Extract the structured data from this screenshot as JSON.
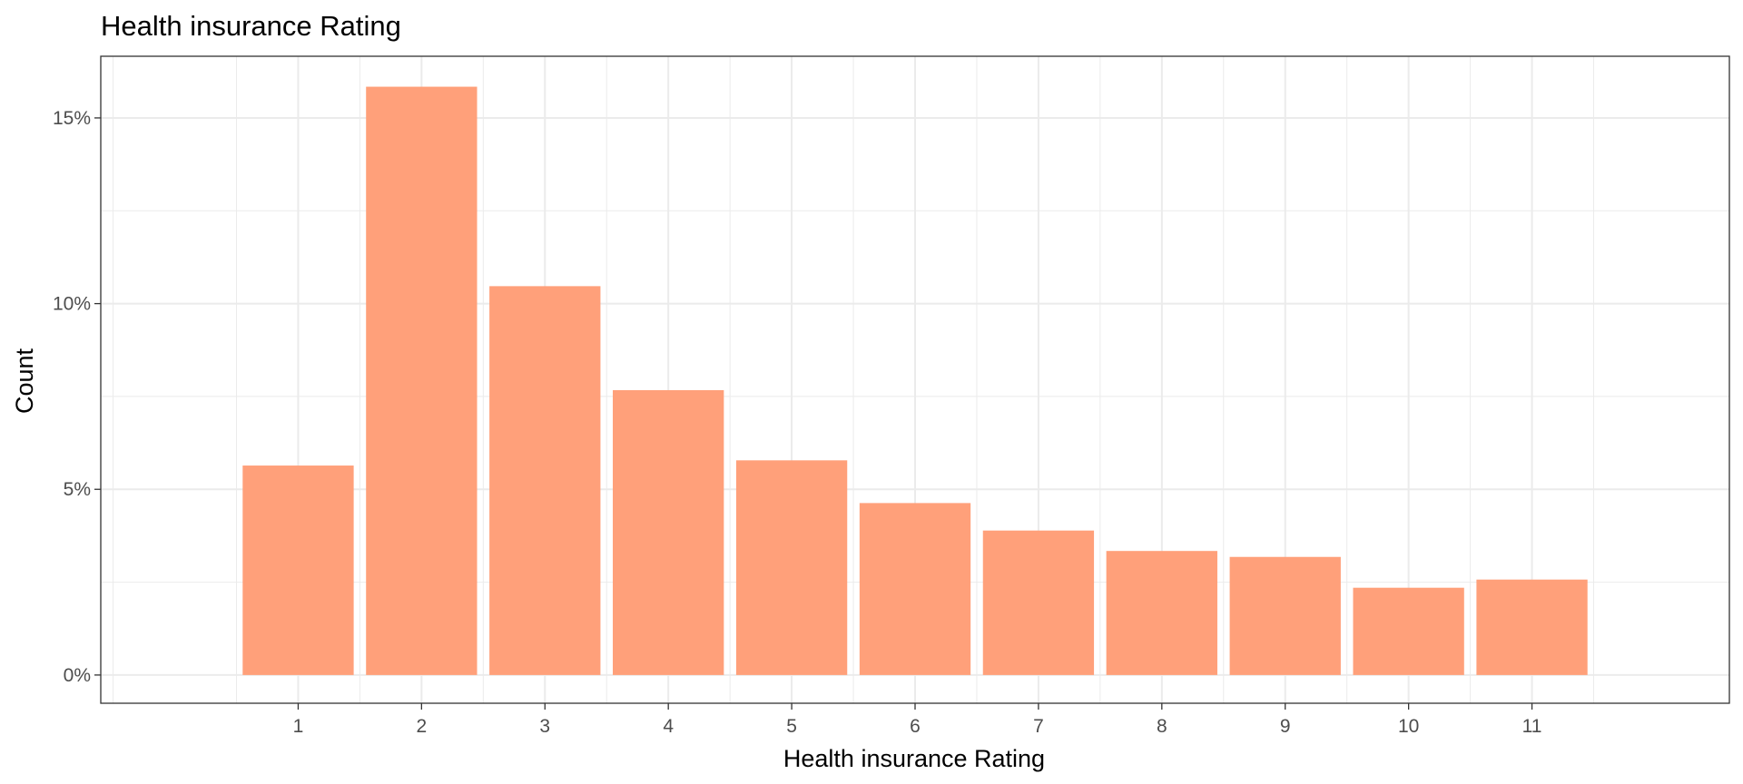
{
  "chart_data": {
    "type": "bar",
    "title": "Health insurance Rating",
    "xlabel": "Health insurance Rating",
    "ylabel": "Count",
    "categories": [
      "1",
      "2",
      "3",
      "4",
      "5",
      "6",
      "7",
      "8",
      "9",
      "10",
      "11"
    ],
    "values": [
      0.0564,
      0.1584,
      0.1047,
      0.0767,
      0.0578,
      0.0463,
      0.0389,
      0.0334,
      0.0318,
      0.0235,
      0.0257
    ],
    "ylim": [
      -0.0076,
      0.1666
    ],
    "xlim": [
      -0.6,
      12.6
    ],
    "y_ticks": [
      0,
      0.05,
      0.1,
      0.15
    ],
    "y_tick_labels": [
      "0%",
      "5%",
      "10%",
      "15%"
    ],
    "grid": true,
    "legend": "none",
    "colors": {
      "bar": "#FFA07A",
      "grid": "#EBEBEB",
      "panel_border": "#333333",
      "tick_label": "#4D4D4D",
      "tick": "#333333"
    }
  }
}
